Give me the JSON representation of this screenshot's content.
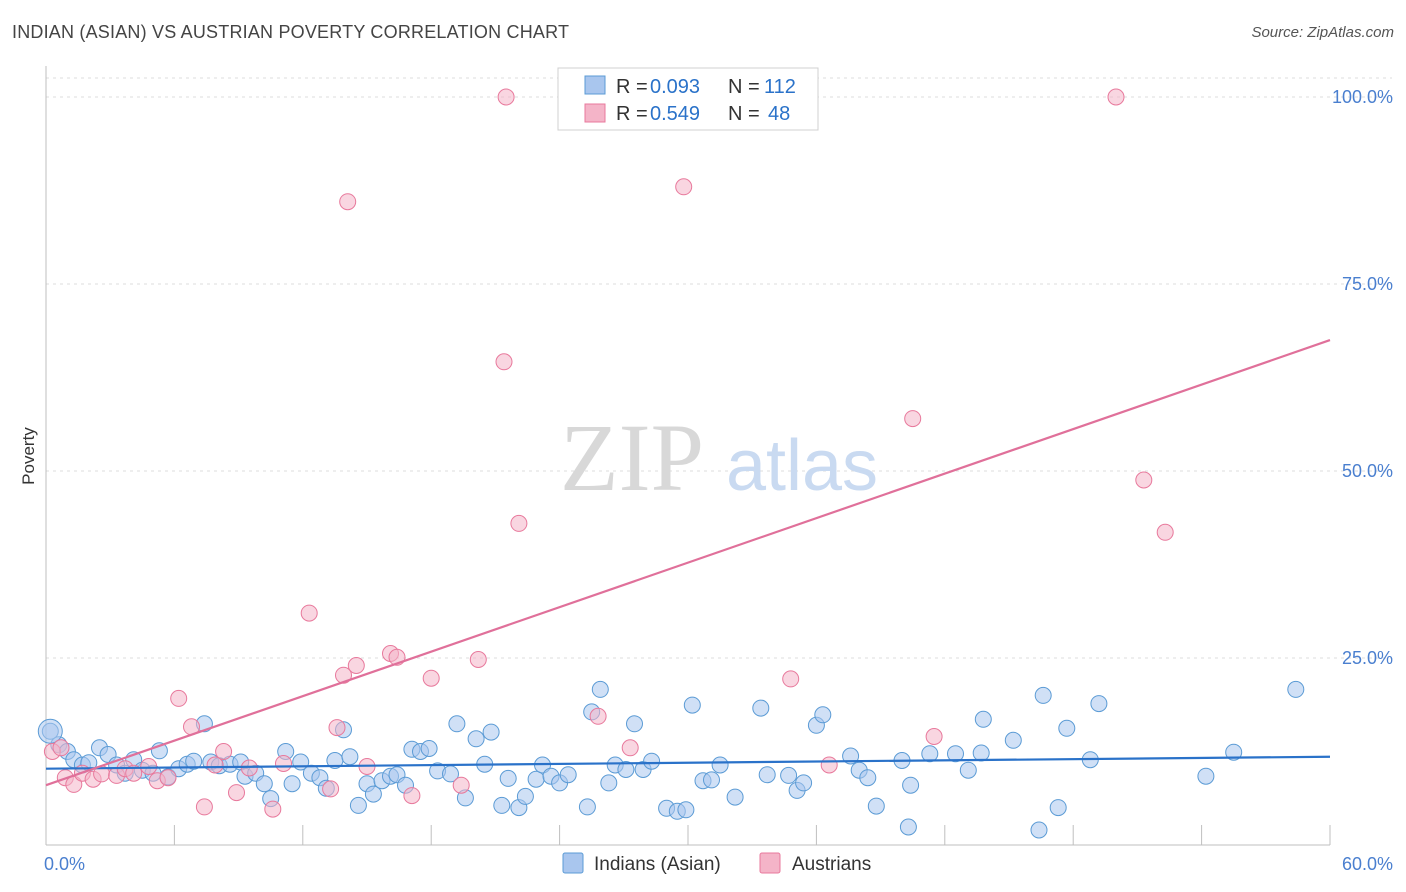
{
  "header": {
    "title": "INDIAN (ASIAN) VS AUSTRIAN POVERTY CORRELATION CHART",
    "source": "Source: ZipAtlas.com"
  },
  "watermark": {
    "zip": "ZIP",
    "atlas": "atlas"
  },
  "stats_box": {
    "rows": [
      {
        "r_label": "R = ",
        "r_value": "0.093",
        "n_label": "N = ",
        "n_value": "112",
        "color": "#a9c6ee"
      },
      {
        "r_label": "R = ",
        "r_value": "0.549",
        "n_label": "N = ",
        "n_value": "48",
        "color": "#f4b4c8"
      }
    ]
  },
  "colors": {
    "blue": "#5b9bd5",
    "blue_fill": "#a9c6ee",
    "blue_line": "#2a72c9",
    "pink": "#e8799c",
    "pink_fill": "#f4b4c8",
    "pink_line": "#e0709a",
    "tick_text": "#4a7fcf"
  },
  "chart_data": {
    "type": "scatter",
    "title": "INDIAN (ASIAN) VS AUSTRIAN POVERTY CORRELATION CHART",
    "xlabel": "",
    "ylabel": "Poverty",
    "xlim": [
      0,
      60
    ],
    "ylim": [
      0,
      102
    ],
    "x_tick_labels": [
      "0.0%",
      "60.0%"
    ],
    "y_ticks": [
      25,
      50,
      75,
      100
    ],
    "y_tick_labels": [
      "25.0%",
      "50.0%",
      "75.0%",
      "100.0%"
    ],
    "grid": true,
    "legend_position": "bottom-center",
    "series": [
      {
        "name": "Indians (Asian)",
        "color": "#5b9bd5",
        "trend": {
          "x": [
            0,
            60
          ],
          "y": [
            10.2,
            11.8
          ]
        },
        "points": [
          [
            0.2,
            15.2
          ],
          [
            0.6,
            13.4
          ],
          [
            1.0,
            12.5
          ],
          [
            1.3,
            11.4
          ],
          [
            1.7,
            10.7
          ],
          [
            2.0,
            11.0
          ],
          [
            2.5,
            13.0
          ],
          [
            2.9,
            12.1
          ],
          [
            3.3,
            10.7
          ],
          [
            3.7,
            9.6
          ],
          [
            4.1,
            11.4
          ],
          [
            4.5,
            10.0
          ],
          [
            5.0,
            9.6
          ],
          [
            5.3,
            12.6
          ],
          [
            5.7,
            9.1
          ],
          [
            6.2,
            10.2
          ],
          [
            6.6,
            10.8
          ],
          [
            6.9,
            11.2
          ],
          [
            7.4,
            16.2
          ],
          [
            7.7,
            11.1
          ],
          [
            8.1,
            10.6
          ],
          [
            8.6,
            10.8
          ],
          [
            9.1,
            11.1
          ],
          [
            9.3,
            9.2
          ],
          [
            9.8,
            9.6
          ],
          [
            10.2,
            8.2
          ],
          [
            10.5,
            6.2
          ],
          [
            11.2,
            12.5
          ],
          [
            11.5,
            8.2
          ],
          [
            11.9,
            11.1
          ],
          [
            12.4,
            9.6
          ],
          [
            12.8,
            9.0
          ],
          [
            13.1,
            7.6
          ],
          [
            13.5,
            11.3
          ],
          [
            13.9,
            15.4
          ],
          [
            14.2,
            11.8
          ],
          [
            14.6,
            5.3
          ],
          [
            15.0,
            8.2
          ],
          [
            15.3,
            6.8
          ],
          [
            15.7,
            8.6
          ],
          [
            16.1,
            9.2
          ],
          [
            16.4,
            9.4
          ],
          [
            16.8,
            8.0
          ],
          [
            17.1,
            12.8
          ],
          [
            17.5,
            12.5
          ],
          [
            17.9,
            12.9
          ],
          [
            18.3,
            9.9
          ],
          [
            18.9,
            9.5
          ],
          [
            19.2,
            16.2
          ],
          [
            19.6,
            6.3
          ],
          [
            20.1,
            14.2
          ],
          [
            20.5,
            10.8
          ],
          [
            20.8,
            15.1
          ],
          [
            21.3,
            5.3
          ],
          [
            21.6,
            8.9
          ],
          [
            22.1,
            5.0
          ],
          [
            22.4,
            6.5
          ],
          [
            22.9,
            8.8
          ],
          [
            23.2,
            10.7
          ],
          [
            23.6,
            9.2
          ],
          [
            24.0,
            8.3
          ],
          [
            24.4,
            9.4
          ],
          [
            25.3,
            5.1
          ],
          [
            25.5,
            17.8
          ],
          [
            25.9,
            20.8
          ],
          [
            26.3,
            8.3
          ],
          [
            26.6,
            10.7
          ],
          [
            27.1,
            10.1
          ],
          [
            27.5,
            16.2
          ],
          [
            27.9,
            10.1
          ],
          [
            28.3,
            11.2
          ],
          [
            29.0,
            4.9
          ],
          [
            29.5,
            4.5
          ],
          [
            29.9,
            4.7
          ],
          [
            30.2,
            18.7
          ],
          [
            30.7,
            8.6
          ],
          [
            31.1,
            8.7
          ],
          [
            31.5,
            10.7
          ],
          [
            32.2,
            6.4
          ],
          [
            33.4,
            18.3
          ],
          [
            33.7,
            9.4
          ],
          [
            34.7,
            9.3
          ],
          [
            35.1,
            7.3
          ],
          [
            35.4,
            8.3
          ],
          [
            36.0,
            16.0
          ],
          [
            36.3,
            17.4
          ],
          [
            37.6,
            11.9
          ],
          [
            38.0,
            10.0
          ],
          [
            38.4,
            9.0
          ],
          [
            38.8,
            5.2
          ],
          [
            40.0,
            11.3
          ],
          [
            40.3,
            2.4
          ],
          [
            40.4,
            8.0
          ],
          [
            41.3,
            12.2
          ],
          [
            42.5,
            12.2
          ],
          [
            43.1,
            10.0
          ],
          [
            43.7,
            12.3
          ],
          [
            43.8,
            16.8
          ],
          [
            45.2,
            14.0
          ],
          [
            46.4,
            2.0
          ],
          [
            46.6,
            20.0
          ],
          [
            47.3,
            5.0
          ],
          [
            47.7,
            15.6
          ],
          [
            48.8,
            11.4
          ],
          [
            49.2,
            18.9
          ],
          [
            54.2,
            9.2
          ],
          [
            55.5,
            12.4
          ],
          [
            58.4,
            20.8
          ]
        ]
      },
      {
        "name": "Austrians",
        "color": "#e8799c",
        "trend": {
          "x": [
            0,
            60
          ],
          "y": [
            8.0,
            67.5
          ]
        },
        "points": [
          [
            0.3,
            12.5
          ],
          [
            0.7,
            13.0
          ],
          [
            0.9,
            9.0
          ],
          [
            1.3,
            8.1
          ],
          [
            1.7,
            9.6
          ],
          [
            2.2,
            8.8
          ],
          [
            2.6,
            9.5
          ],
          [
            3.3,
            9.3
          ],
          [
            3.7,
            10.2
          ],
          [
            4.1,
            9.6
          ],
          [
            4.8,
            10.5
          ],
          [
            5.2,
            8.6
          ],
          [
            5.7,
            9.0
          ],
          [
            6.2,
            19.6
          ],
          [
            6.8,
            15.8
          ],
          [
            7.4,
            5.1
          ],
          [
            7.9,
            10.7
          ],
          [
            8.3,
            12.5
          ],
          [
            8.9,
            7.0
          ],
          [
            9.5,
            10.3
          ],
          [
            10.6,
            4.8
          ],
          [
            11.1,
            10.9
          ],
          [
            12.3,
            31.0
          ],
          [
            13.3,
            7.5
          ],
          [
            13.6,
            15.7
          ],
          [
            13.9,
            22.7
          ],
          [
            14.1,
            86.0
          ],
          [
            14.5,
            24.0
          ],
          [
            15.0,
            10.5
          ],
          [
            16.1,
            25.6
          ],
          [
            16.4,
            25.1
          ],
          [
            17.1,
            6.6
          ],
          [
            18.0,
            22.3
          ],
          [
            19.4,
            8.0
          ],
          [
            20.2,
            24.8
          ],
          [
            21.4,
            64.6
          ],
          [
            21.5,
            100.0
          ],
          [
            22.1,
            43.0
          ],
          [
            25.8,
            17.2
          ],
          [
            27.3,
            13.0
          ],
          [
            29.8,
            88.0
          ],
          [
            34.8,
            22.2
          ],
          [
            36.6,
            10.7
          ],
          [
            40.5,
            57.0
          ],
          [
            41.5,
            14.5
          ],
          [
            50.0,
            100.0
          ],
          [
            51.3,
            48.8
          ],
          [
            52.3,
            41.8
          ]
        ]
      }
    ]
  },
  "legend": {
    "items": [
      {
        "label": "Indians (Asian)",
        "color": "#a9c6ee"
      },
      {
        "label": "Austrians",
        "color": "#f4b4c8"
      }
    ]
  }
}
